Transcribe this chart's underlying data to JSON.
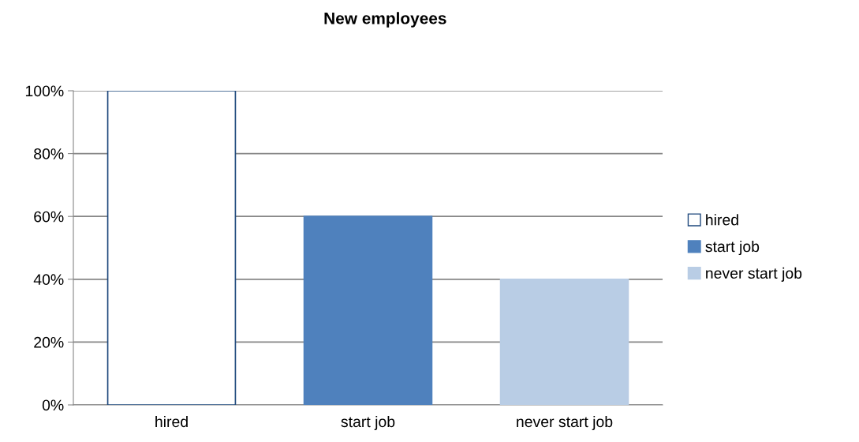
{
  "chart_data": {
    "type": "bar",
    "title": "New employees",
    "categories": [
      "hired",
      "start job",
      "never start job"
    ],
    "series": [
      {
        "name": "hired",
        "color": "#ffffff",
        "values": [
          100,
          null,
          null
        ]
      },
      {
        "name": "start job",
        "color": "#4f81bd",
        "values": [
          null,
          60,
          null
        ]
      },
      {
        "name": "never start job",
        "color": "#b9cde5",
        "values": [
          null,
          null,
          40
        ]
      }
    ],
    "ylim": [
      0,
      100
    ],
    "yticks": [
      {
        "value": 0,
        "label": "0%"
      },
      {
        "value": 20,
        "label": "20%"
      },
      {
        "value": 40,
        "label": "40%"
      },
      {
        "value": 60,
        "label": "60%"
      },
      {
        "value": 80,
        "label": "80%"
      },
      {
        "value": 100,
        "label": "100%"
      }
    ],
    "grid": "y",
    "legend": "right"
  }
}
